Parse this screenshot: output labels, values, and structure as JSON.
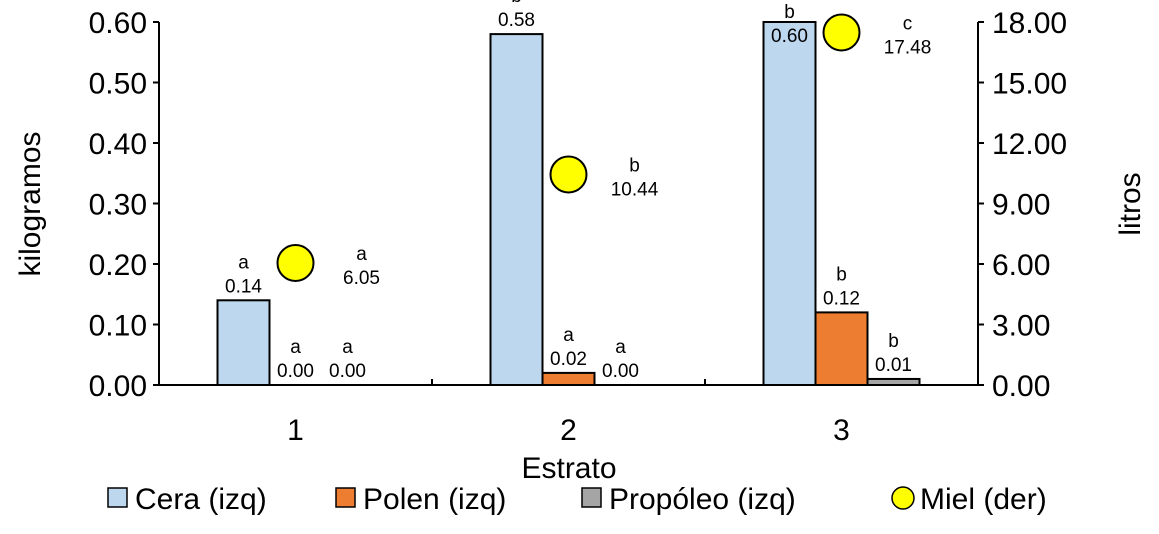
{
  "chart_data": {
    "type": "bar",
    "title": "",
    "xlabel": "Estrato",
    "ylabel_left": "kilogramos",
    "ylabel_right": "litros",
    "categories": [
      "1",
      "2",
      "3"
    ],
    "ylim_left": [
      0,
      0.6
    ],
    "ylim_right": [
      0,
      18
    ],
    "yticks_left": [
      "0.00",
      "0.10",
      "0.20",
      "0.30",
      "0.40",
      "0.50",
      "0.60"
    ],
    "yticks_right": [
      "0.00",
      "3.00",
      "6.00",
      "9.00",
      "12.00",
      "15.00",
      "18.00"
    ],
    "grid": false,
    "legend_position": "bottom",
    "series": [
      {
        "name": "Cera (izq)",
        "kind": "bar",
        "axis": "left",
        "color": "#BDD7EE",
        "values": [
          0.14,
          0.58,
          0.6
        ],
        "labels": [
          "0.14",
          "0.58",
          "0.60"
        ],
        "letters": [
          "a",
          "b",
          "b"
        ]
      },
      {
        "name": "Polen (izq)",
        "kind": "bar",
        "axis": "left",
        "color": "#ED7D31",
        "values": [
          0.0,
          0.02,
          0.12
        ],
        "labels": [
          "0.00",
          "0.02",
          "0.12"
        ],
        "letters": [
          "a",
          "a",
          "b"
        ]
      },
      {
        "name": "Propóleo (izq)",
        "kind": "bar",
        "axis": "left",
        "color": "#A5A5A5",
        "values": [
          0.0,
          0.0,
          0.01
        ],
        "labels": [
          "0.00",
          "0.00",
          "0.01"
        ],
        "letters": [
          "a",
          "a",
          "b"
        ]
      },
      {
        "name": "Miel (der)",
        "kind": "marker",
        "axis": "right",
        "color": "#FFFF00",
        "values": [
          6.05,
          10.44,
          17.48
        ],
        "labels": [
          "6.05",
          "10.44",
          "17.48"
        ],
        "letters": [
          "a",
          "b",
          "c"
        ]
      }
    ]
  }
}
